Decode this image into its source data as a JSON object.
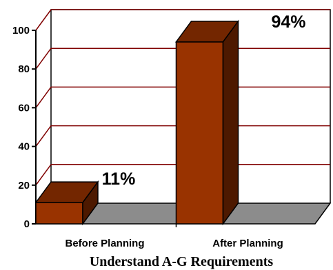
{
  "chart_data": {
    "type": "bar",
    "categories": [
      "Before Planning",
      "After Planning"
    ],
    "values": [
      11,
      94
    ],
    "data_labels": [
      "11%",
      "94%"
    ],
    "ylim": [
      0,
      100
    ],
    "yticks": [
      0,
      20,
      40,
      60,
      80,
      100
    ],
    "title": "",
    "xlabel": "Understand A-G Requirements",
    "ylabel": "",
    "grid": true,
    "style": "3d",
    "colors": {
      "bar_front": "#993300",
      "bar_top": "#732600",
      "bar_side": "#4d1900",
      "floor": "#8c8c8c",
      "gridline": "#800000"
    }
  }
}
